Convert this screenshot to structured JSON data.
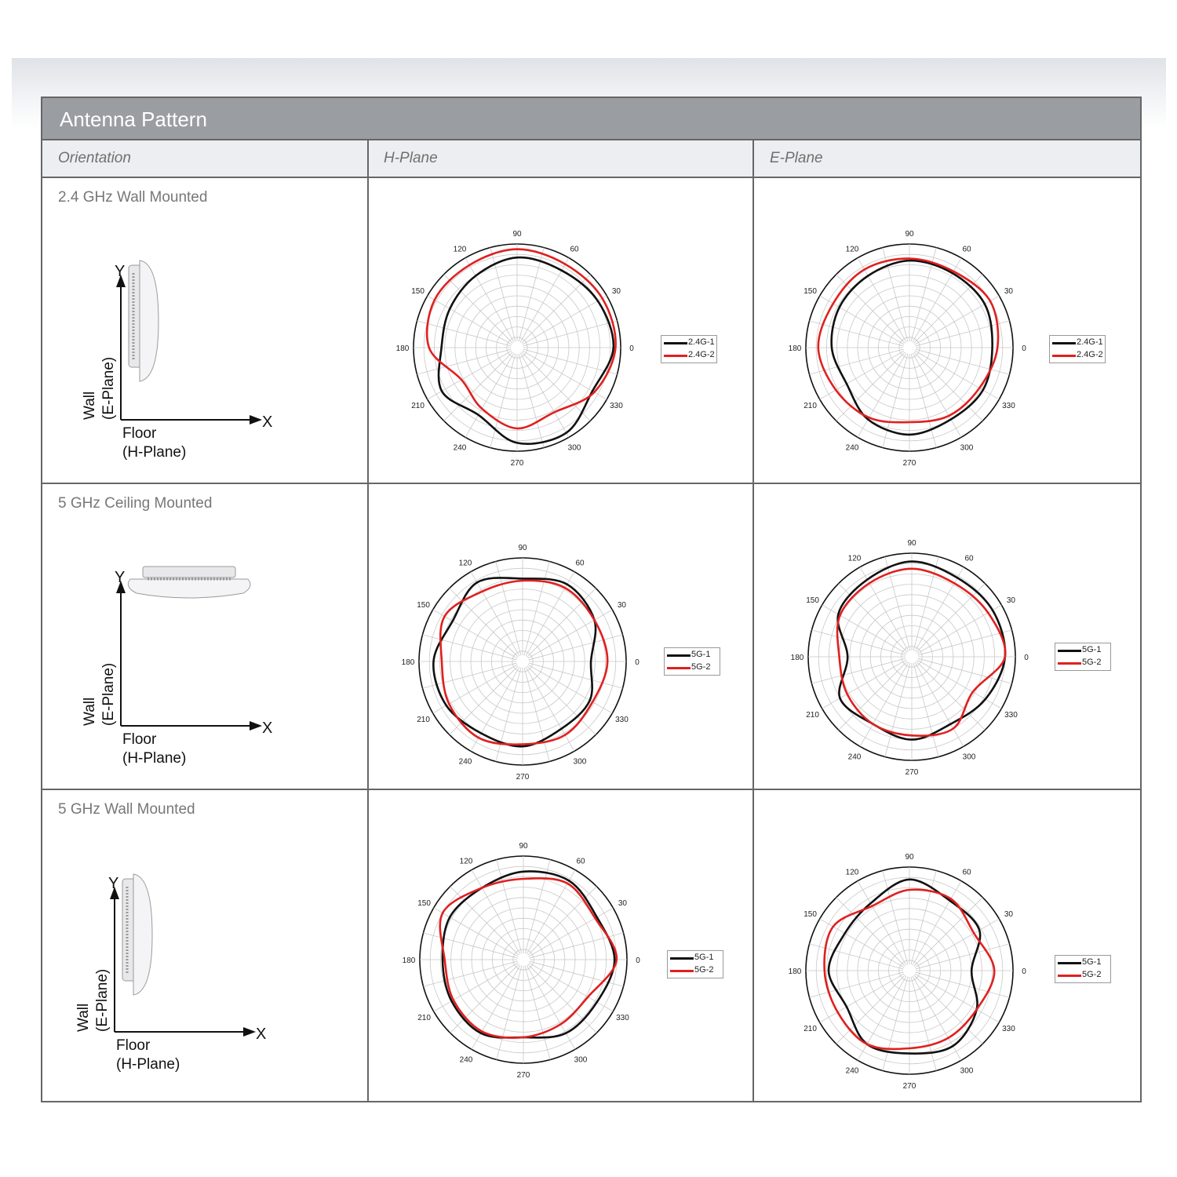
{
  "title": "Antenna Pattern",
  "headers": {
    "orientation": "Orientation",
    "h_plane": "H-Plane",
    "e_plane": "E-Plane"
  },
  "rows": [
    {
      "label": "2.4 GHz Wall Mounted",
      "diagram": {
        "y_label": "Y",
        "x_label": "X",
        "wall_label": "Wall",
        "e_plane_label": "(E-Plane)",
        "floor_label": "Floor",
        "h_plane_label": "(H-Plane)",
        "device_orientation": "wall"
      }
    },
    {
      "label": "5 GHz Ceiling Mounted",
      "diagram": {
        "y_label": "Y",
        "x_label": "X",
        "wall_label": "Wall",
        "e_plane_label": "(E-Plane)",
        "floor_label": "Floor",
        "h_plane_label": "(H-Plane)",
        "device_orientation": "ceiling"
      }
    },
    {
      "label": "5 GHz Wall Mounted",
      "diagram": {
        "y_label": "Y",
        "x_label": "X",
        "wall_label": "Wall",
        "e_plane_label": "(E-Plane)",
        "floor_label": "Floor",
        "h_plane_label": "(H-Plane)",
        "device_orientation": "wall"
      }
    }
  ],
  "colors": {
    "series_1": "#111111",
    "series_2": "#e02020",
    "grid": "#c8c8c8",
    "border": "#666666",
    "title_bar": "#9a9da1"
  },
  "chart_data": [
    {
      "type": "polar",
      "panel": "2.4 GHz Wall Mounted — H-Plane",
      "angle_labels": [
        "0",
        "30",
        "60",
        "90",
        "120",
        "150",
        "180",
        "210",
        "240",
        "270",
        "300",
        "330"
      ],
      "angles": [
        0,
        30,
        60,
        90,
        120,
        150,
        180,
        210,
        240,
        270,
        300,
        330
      ],
      "series": [
        {
          "name": "2.4G-1",
          "values": [
            0.93,
            0.9,
            0.86,
            0.87,
            0.8,
            0.75,
            0.73,
            0.84,
            0.75,
            0.92,
            0.95,
            0.84
          ]
        },
        {
          "name": "2.4G-2",
          "values": [
            0.95,
            0.95,
            0.93,
            0.95,
            0.92,
            0.92,
            0.85,
            0.62,
            0.68,
            0.78,
            0.72,
            0.86
          ]
        }
      ]
    },
    {
      "type": "polar",
      "panel": "2.4 GHz Wall Mounted — E-Plane",
      "angle_labels": [
        "0",
        "30",
        "60",
        "90",
        "120",
        "150",
        "180",
        "210",
        "240",
        "270",
        "300",
        "330"
      ],
      "angles": [
        0,
        30,
        60,
        90,
        120,
        150,
        180,
        210,
        240,
        270,
        300,
        330
      ],
      "series": [
        {
          "name": "2.4G-1",
          "values": [
            0.8,
            0.84,
            0.83,
            0.84,
            0.8,
            0.78,
            0.75,
            0.7,
            0.8,
            0.84,
            0.8,
            0.82
          ]
        },
        {
          "name": "2.4G-2",
          "values": [
            0.85,
            0.9,
            0.85,
            0.86,
            0.87,
            0.85,
            0.88,
            0.82,
            0.78,
            0.72,
            0.76,
            0.78
          ]
        }
      ]
    },
    {
      "type": "polar",
      "panel": "5 GHz Ceiling Mounted — H-Plane",
      "angle_labels": [
        "0",
        "30",
        "60",
        "90",
        "120",
        "150",
        "180",
        "210",
        "240",
        "270",
        "300",
        "330"
      ],
      "angles": [
        0,
        30,
        60,
        90,
        120,
        150,
        180,
        210,
        240,
        270,
        300,
        330
      ],
      "series": [
        {
          "name": "5G-1",
          "values": [
            0.66,
            0.8,
            0.86,
            0.8,
            0.88,
            0.78,
            0.86,
            0.85,
            0.8,
            0.82,
            0.75,
            0.75
          ]
        },
        {
          "name": "5G-2",
          "values": [
            0.82,
            0.8,
            0.82,
            0.78,
            0.78,
            0.87,
            0.78,
            0.82,
            0.85,
            0.8,
            0.82,
            0.78
          ]
        }
      ]
    },
    {
      "type": "polar",
      "panel": "5 GHz Ceiling Mounted — E-Plane",
      "angle_labels": [
        "0",
        "30",
        "60",
        "90",
        "120",
        "150",
        "180",
        "210",
        "240",
        "270",
        "300",
        "330"
      ],
      "angles": [
        0,
        30,
        60,
        90,
        120,
        150,
        180,
        210,
        240,
        270,
        300,
        330
      ],
      "series": [
        {
          "name": "5G-1",
          "values": [
            0.9,
            0.9,
            0.88,
            0.92,
            0.86,
            0.82,
            0.62,
            0.8,
            0.75,
            0.8,
            0.75,
            0.82
          ]
        },
        {
          "name": "5G-2",
          "values": [
            0.9,
            0.85,
            0.82,
            0.85,
            0.82,
            0.8,
            0.7,
            0.72,
            0.75,
            0.76,
            0.8,
            0.68
          ]
        }
      ]
    },
    {
      "type": "polar",
      "panel": "5 GHz Wall Mounted — H-Plane",
      "angle_labels": [
        "0",
        "30",
        "60",
        "90",
        "120",
        "150",
        "180",
        "210",
        "240",
        "270",
        "300",
        "330"
      ],
      "angles": [
        0,
        30,
        60,
        90,
        120,
        150,
        180,
        210,
        240,
        270,
        300,
        330
      ],
      "series": [
        {
          "name": "5G-1",
          "values": [
            0.88,
            0.82,
            0.88,
            0.85,
            0.8,
            0.82,
            0.78,
            0.8,
            0.82,
            0.75,
            0.82,
            0.82
          ]
        },
        {
          "name": "5G-2",
          "values": [
            0.9,
            0.8,
            0.85,
            0.78,
            0.8,
            0.9,
            0.76,
            0.78,
            0.8,
            0.75,
            0.72,
            0.72
          ]
        }
      ]
    },
    {
      "type": "polar",
      "panel": "5 GHz Wall Mounted — E-Plane",
      "angle_labels": [
        "0",
        "30",
        "60",
        "90",
        "120",
        "150",
        "180",
        "210",
        "240",
        "270",
        "300",
        "330"
      ],
      "angles": [
        0,
        30,
        60,
        90,
        120,
        150,
        180,
        210,
        240,
        270,
        300,
        330
      ],
      "series": [
        {
          "name": "5G-1",
          "values": [
            0.6,
            0.78,
            0.78,
            0.88,
            0.75,
            0.72,
            0.78,
            0.7,
            0.82,
            0.8,
            0.84,
            0.75
          ]
        },
        {
          "name": "5G-2",
          "values": [
            0.82,
            0.72,
            0.8,
            0.78,
            0.72,
            0.85,
            0.82,
            0.8,
            0.82,
            0.75,
            0.75,
            0.75
          ]
        }
      ]
    }
  ]
}
